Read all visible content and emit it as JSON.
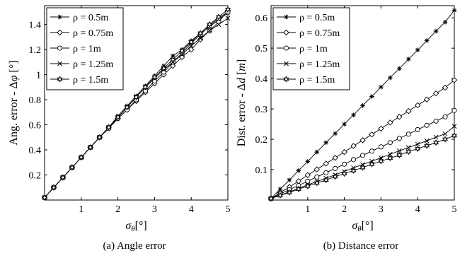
{
  "chart_data": [
    {
      "type": "line",
      "caption": "(a)  Angle error",
      "xlabel": "σθ[°]",
      "ylabel": "Ang. error - Δφ [°]",
      "xlim": [
        0,
        5
      ],
      "ylim": [
        0,
        1.55
      ],
      "xticks": [
        1,
        2,
        3,
        4,
        5
      ],
      "yticks": [
        0.2,
        0.4,
        0.6,
        0.8,
        1,
        1.2,
        1.4
      ],
      "ytick_labels": [
        "0.2",
        "0.4",
        "0.6",
        "0.8",
        "1",
        "1.2",
        "1.4"
      ],
      "grid": false,
      "legend_position": "top-left",
      "x": [
        0,
        0.25,
        0.5,
        0.75,
        1,
        1.25,
        1.5,
        1.75,
        2,
        2.25,
        2.5,
        2.75,
        3,
        3.25,
        3.5,
        3.75,
        4,
        4.25,
        4.5,
        4.75,
        5
      ],
      "series": [
        {
          "name": "ρ = 0.5m",
          "marker": "asterisk",
          "values": [
            0.02,
            0.1,
            0.18,
            0.26,
            0.34,
            0.42,
            0.5,
            0.58,
            0.67,
            0.75,
            0.83,
            0.91,
            0.99,
            1.07,
            1.15,
            1.2,
            1.27,
            1.33,
            1.38,
            1.44,
            1.49
          ]
        },
        {
          "name": "ρ = 0.75m",
          "marker": "diamond",
          "values": [
            0.02,
            0.1,
            0.18,
            0.26,
            0.34,
            0.42,
            0.5,
            0.58,
            0.65,
            0.72,
            0.79,
            0.86,
            0.93,
            1.0,
            1.07,
            1.14,
            1.2,
            1.28,
            1.35,
            1.42,
            1.51
          ]
        },
        {
          "name": "ρ = 1m",
          "marker": "circle",
          "values": [
            0.02,
            0.1,
            0.18,
            0.26,
            0.34,
            0.42,
            0.5,
            0.57,
            0.65,
            0.72,
            0.8,
            0.87,
            0.95,
            1.02,
            1.1,
            1.17,
            1.25,
            1.32,
            1.39,
            1.45,
            1.5
          ]
        },
        {
          "name": "ρ = 1.25m",
          "marker": "x",
          "values": [
            0.02,
            0.1,
            0.18,
            0.26,
            0.34,
            0.42,
            0.5,
            0.58,
            0.66,
            0.74,
            0.82,
            0.9,
            0.97,
            1.04,
            1.1,
            1.16,
            1.23,
            1.29,
            1.35,
            1.4,
            1.45
          ]
        },
        {
          "name": "ρ = 1.5m",
          "marker": "hexagram",
          "values": [
            0.02,
            0.1,
            0.18,
            0.26,
            0.34,
            0.42,
            0.5,
            0.58,
            0.66,
            0.74,
            0.82,
            0.9,
            0.98,
            1.05,
            1.12,
            1.19,
            1.26,
            1.33,
            1.4,
            1.46,
            1.52
          ]
        }
      ]
    },
    {
      "type": "line",
      "caption": "(b)  Distance error",
      "xlabel": "σθ[°]",
      "ylabel": "Dist. error - Δd [m]",
      "xlim": [
        0,
        5
      ],
      "ylim": [
        0,
        0.64
      ],
      "xticks": [
        1,
        2,
        3,
        4,
        5
      ],
      "yticks": [
        0.1,
        0.2,
        0.3,
        0.4,
        0.5,
        0.6
      ],
      "ytick_labels": [
        "0.1",
        "0.2",
        "0.3",
        "0.4",
        "0.5",
        "0.6"
      ],
      "grid": false,
      "legend_position": "top-left",
      "x": [
        0,
        0.25,
        0.5,
        0.75,
        1,
        1.25,
        1.5,
        1.75,
        2,
        2.25,
        2.5,
        2.75,
        3,
        3.25,
        3.5,
        3.75,
        4,
        4.25,
        4.5,
        4.75,
        5
      ],
      "series": [
        {
          "name": "ρ = 0.5m",
          "marker": "asterisk",
          "values": [
            0.005,
            0.036,
            0.066,
            0.097,
            0.127,
            0.158,
            0.189,
            0.219,
            0.25,
            0.28,
            0.311,
            0.341,
            0.372,
            0.403,
            0.433,
            0.464,
            0.494,
            0.525,
            0.556,
            0.586,
            0.625
          ]
        },
        {
          "name": "ρ = 0.75m",
          "marker": "diamond",
          "values": [
            0.005,
            0.024,
            0.043,
            0.062,
            0.082,
            0.101,
            0.12,
            0.139,
            0.158,
            0.178,
            0.197,
            0.216,
            0.235,
            0.255,
            0.274,
            0.293,
            0.312,
            0.331,
            0.351,
            0.37,
            0.395
          ]
        },
        {
          "name": "ρ = 1m",
          "marker": "circle",
          "values": [
            0.005,
            0.02,
            0.034,
            0.048,
            0.062,
            0.076,
            0.09,
            0.104,
            0.118,
            0.133,
            0.147,
            0.161,
            0.175,
            0.189,
            0.203,
            0.217,
            0.232,
            0.246,
            0.26,
            0.274,
            0.295
          ]
        },
        {
          "name": "ρ = 1.25m",
          "marker": "x",
          "values": [
            0.005,
            0.016,
            0.027,
            0.038,
            0.05,
            0.061,
            0.072,
            0.083,
            0.094,
            0.106,
            0.117,
            0.128,
            0.139,
            0.151,
            0.162,
            0.173,
            0.184,
            0.195,
            0.207,
            0.218,
            0.243
          ]
        },
        {
          "name": "ρ = 1.5m",
          "marker": "hexagram",
          "values": [
            0.005,
            0.015,
            0.025,
            0.036,
            0.046,
            0.056,
            0.066,
            0.077,
            0.087,
            0.097,
            0.107,
            0.118,
            0.128,
            0.138,
            0.148,
            0.159,
            0.169,
            0.179,
            0.189,
            0.2,
            0.212
          ]
        }
      ]
    }
  ]
}
